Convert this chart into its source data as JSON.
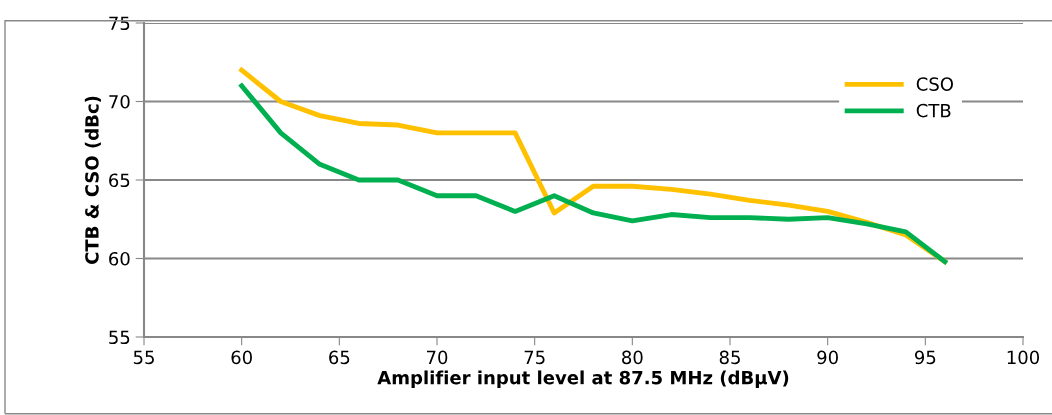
{
  "chart_data": {
    "type": "line",
    "xlabel": "Amplifier input level at 87.5 MHz (dBµV)",
    "ylabel": "CTB & CSO (dBc)",
    "x": [
      60,
      62,
      64,
      66,
      68,
      70,
      72,
      74,
      76,
      78,
      80,
      82,
      84,
      86,
      88,
      90,
      92,
      94,
      96
    ],
    "series": [
      {
        "name": "CSO",
        "color": "#ffc000",
        "values": [
          72,
          70,
          69.1,
          68.6,
          68.5,
          68,
          68,
          68,
          62.9,
          64.6,
          64.6,
          64.4,
          64.1,
          63.7,
          63.4,
          63.0,
          62.3,
          61.5,
          59.8
        ]
      },
      {
        "name": "CTB",
        "color": "#00b050",
        "values": [
          71,
          68,
          66,
          65,
          65,
          64,
          64,
          63,
          64,
          62.9,
          62.4,
          62.8,
          62.6,
          62.6,
          62.5,
          62.6,
          62.2,
          61.7,
          59.8
        ]
      }
    ],
    "xlim": [
      55,
      100
    ],
    "xticks": [
      55,
      60,
      65,
      70,
      75,
      80,
      85,
      90,
      95,
      100
    ],
    "ylim": [
      55,
      75
    ],
    "yticks": [
      55,
      60,
      65,
      70,
      75
    ],
    "grid": "y",
    "legend": "top right",
    "marker": "none",
    "line_style": "solid"
  }
}
